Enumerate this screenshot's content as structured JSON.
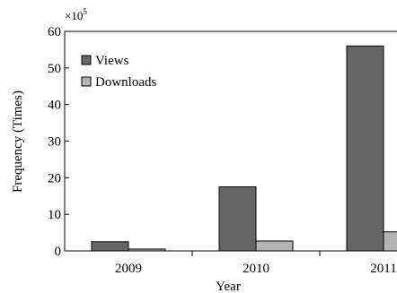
{
  "chart_data": {
    "type": "bar",
    "categories": [
      "2009",
      "2010",
      "2011"
    ],
    "series": [
      {
        "name": "Views",
        "values": [
          2.5,
          17.5,
          56
        ],
        "color": "#666666"
      },
      {
        "name": "Downloads",
        "values": [
          0.5,
          2.7,
          5.2
        ],
        "color": "#b3b3b3"
      }
    ],
    "xlabel": "Year",
    "ylabel": "Frequency (Times)",
    "y_multiplier": "×10",
    "y_multiplier_exponent": "5",
    "ylim": [
      0,
      60
    ],
    "yticks": [
      "0",
      "10",
      "20",
      "30",
      "40",
      "50",
      "60"
    ],
    "grid": false,
    "legend_position": "top-left"
  }
}
